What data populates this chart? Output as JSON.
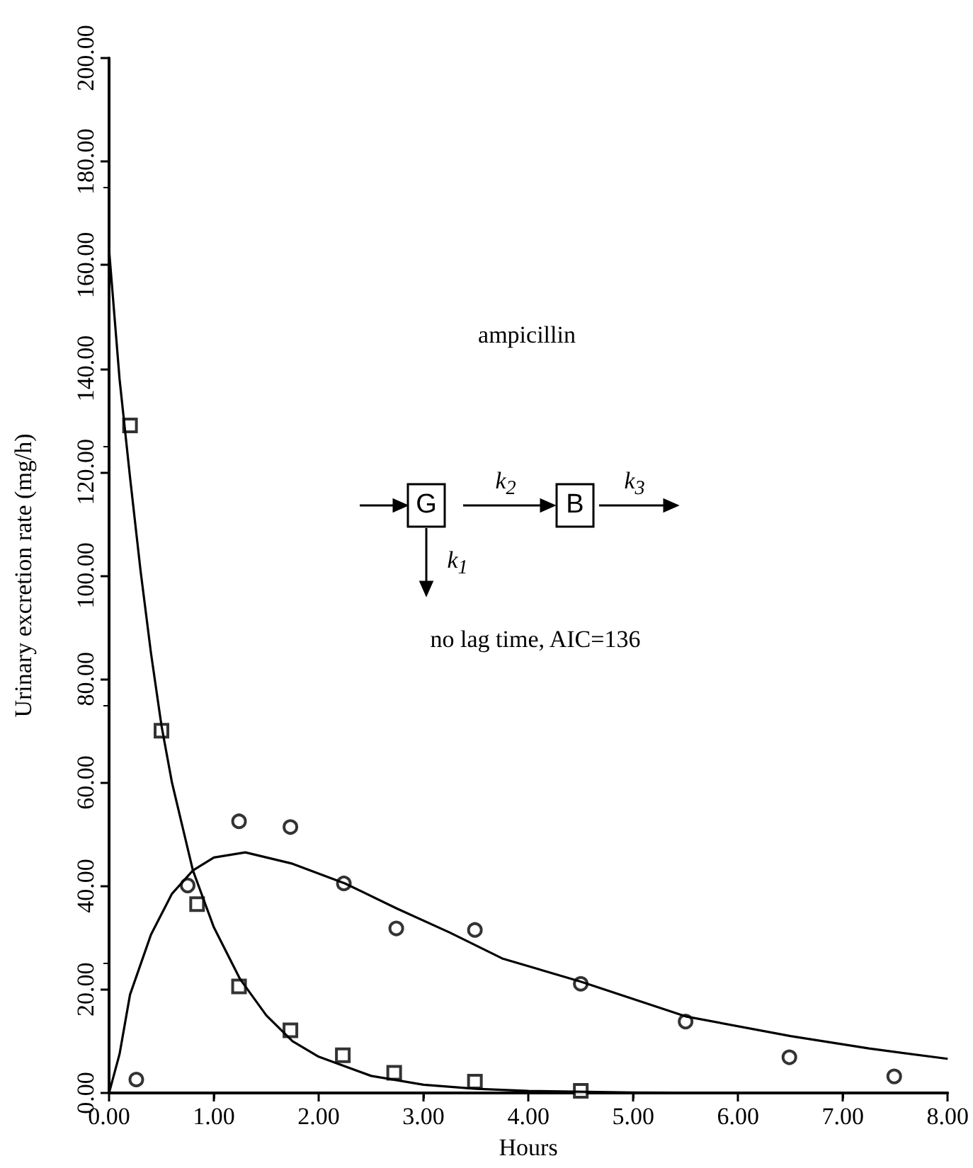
{
  "chart_data": {
    "type": "scatter",
    "xlabel": "Hours",
    "ylabel": "Urinary excretion rate (mg/h)",
    "annotations": [
      "ampicillin",
      "no lag time, AIC=136",
      "G",
      "B",
      "k$_{1}$",
      "k$_{2}$",
      "k$_{3}$"
    ],
    "xlim": [
      0,
      8
    ],
    "ylim": [
      0,
      200
    ],
    "xticks": [
      {
        "value": 0,
        "label": "0.00"
      },
      {
        "value": 1,
        "label": "1.00"
      },
      {
        "value": 2,
        "label": "2.00"
      },
      {
        "value": 3,
        "label": "3.00"
      },
      {
        "value": 4,
        "label": "4.00"
      },
      {
        "value": 5,
        "label": "5.00"
      },
      {
        "value": 6,
        "label": "6.00"
      },
      {
        "value": 7,
        "label": "7.00"
      },
      {
        "value": 8,
        "label": "8.00"
      }
    ],
    "yticks": [
      {
        "value": 0,
        "label": "0.00"
      },
      {
        "value": 20,
        "label": "20.00"
      },
      {
        "value": 40,
        "label": "40.00"
      },
      {
        "value": 60,
        "label": "60.00"
      },
      {
        "value": 80,
        "label": "80.00"
      },
      {
        "value": 100,
        "label": "100.00"
      },
      {
        "value": 120,
        "label": "120.00"
      },
      {
        "value": 140,
        "label": "140.00"
      },
      {
        "value": 160,
        "label": "160.00"
      },
      {
        "value": 180,
        "label": "180.00"
      },
      {
        "value": 200,
        "label": "200.00"
      }
    ],
    "series": [
      {
        "marker": "square",
        "color": "#000000",
        "x": [
          0.2,
          0.5,
          0.84,
          1.24,
          1.73,
          2.23,
          2.72,
          3.49,
          4.5
        ],
        "values": [
          129,
          70,
          36.5,
          20.6,
          12.1,
          7.3,
          3.9,
          2.2,
          0.4
        ]
      },
      {
        "marker": "circle",
        "color": "#000000",
        "x": [
          0.26,
          0.75,
          1.24,
          1.73,
          2.24,
          2.74,
          3.49,
          4.5,
          5.5,
          6.49,
          7.49
        ],
        "values": [
          2.6,
          40.1,
          52.5,
          51.4,
          40.5,
          31.8,
          31.5,
          21.1,
          13.8,
          6.9,
          3.2
        ]
      },
      {
        "type": "line",
        "marker": "none",
        "color": "#000000",
        "x": [
          0,
          0.1,
          0.2,
          0.3,
          0.4,
          0.5,
          0.6,
          0.8,
          1.0,
          1.25,
          1.5,
          1.75,
          2.0,
          2.5,
          3.0,
          3.5,
          4.0,
          5.0,
          6.0,
          8.0
        ],
        "values": [
          163,
          138,
          119,
          101,
          85,
          71,
          60,
          43,
          32,
          22,
          15,
          10,
          7,
          3.3,
          1.6,
          0.8,
          0.4,
          0.1,
          0,
          0
        ]
      },
      {
        "type": "line",
        "marker": "none",
        "color": "#000000",
        "x": [
          0,
          0.1,
          0.2,
          0.4,
          0.6,
          0.8,
          1.0,
          1.3,
          1.75,
          2.25,
          2.75,
          3.25,
          3.75,
          4.5,
          5.5,
          6.5,
          7.25,
          8.0
        ],
        "values": [
          0,
          7.5,
          19,
          30.6,
          38.5,
          43,
          45.5,
          46.5,
          44.3,
          40.5,
          35.6,
          31,
          26,
          21.5,
          14.8,
          11,
          8.6,
          6.6
        ]
      }
    ]
  }
}
